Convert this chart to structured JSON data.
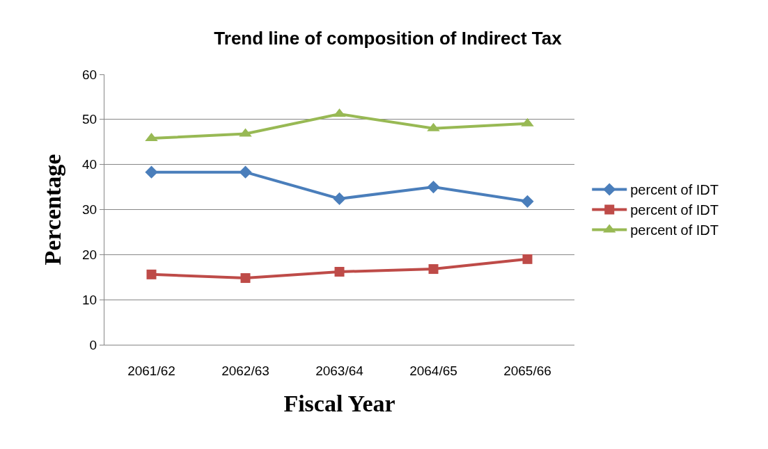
{
  "chart_data": {
    "type": "line",
    "title": "Trend line of composition of Indirect Tax",
    "xlabel": "Fiscal Year",
    "ylabel": "Percentage",
    "categories": [
      "2061/62",
      "2062/63",
      "2063/64",
      "2064/65",
      "2065/66"
    ],
    "series": [
      {
        "name": "percent of IDT",
        "color": "#4a7ebb",
        "marker": "diamond",
        "values": [
          38.3,
          38.3,
          32.4,
          35.0,
          31.8
        ]
      },
      {
        "name": "percent of IDT",
        "color": "#be4b48",
        "marker": "square",
        "values": [
          15.6,
          14.8,
          16.2,
          16.8,
          19.0
        ]
      },
      {
        "name": "percent of IDT",
        "color": "#98b954",
        "marker": "triangle",
        "values": [
          45.8,
          46.8,
          51.2,
          48.0,
          49.1
        ]
      }
    ],
    "ylim": [
      0,
      60
    ],
    "yticks": [
      0,
      10,
      20,
      30,
      40,
      50,
      60
    ],
    "grid": "y",
    "legend": "right",
    "line_style": "solid"
  }
}
